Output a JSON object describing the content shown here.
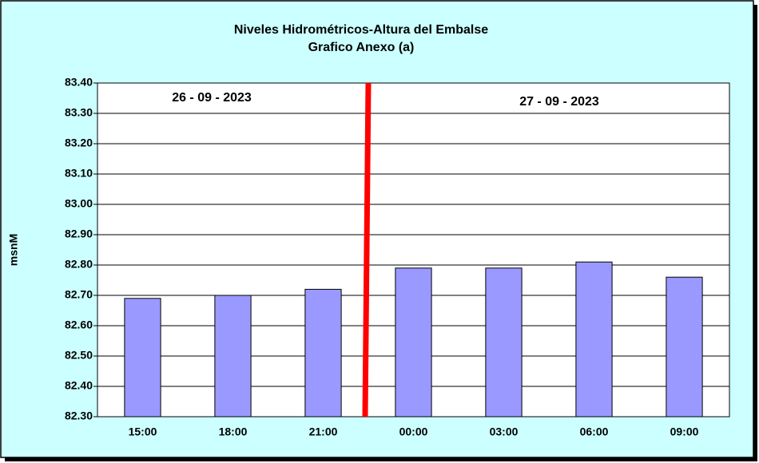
{
  "chart_data": {
    "type": "bar",
    "title": "Niveles Hidrométricos-Altura del Embalse",
    "subtitle": "Grafico Anexo (a)",
    "y_label": "msnM",
    "annotations": [
      "26 - 09 - 2023",
      "27 - 09 - 2023"
    ],
    "categories": [
      "15:00",
      "18:00",
      "21:00",
      "00:00",
      "03:00",
      "06:00",
      "09:00"
    ],
    "values": [
      82.69,
      82.7,
      82.72,
      82.79,
      82.79,
      82.81,
      82.76
    ],
    "color": "#9999ff",
    "ylim": [
      82.3,
      83.4
    ],
    "yticks": [
      {
        "value": 82.3,
        "label": "82.30"
      },
      {
        "value": 82.4,
        "label": "82.40"
      },
      {
        "value": 82.5,
        "label": "82.50"
      },
      {
        "value": 82.6,
        "label": "82.60"
      },
      {
        "value": 82.7,
        "label": "82.70"
      },
      {
        "value": 82.8,
        "label": "82.80"
      },
      {
        "value": 82.9,
        "label": "82.90"
      },
      {
        "value": 83.0,
        "label": "83.00"
      },
      {
        "value": 83.1,
        "label": "83.10"
      },
      {
        "value": 83.2,
        "label": "83.20"
      },
      {
        "value": 83.3,
        "label": "83.30"
      },
      {
        "value": 83.4,
        "label": "83.40"
      }
    ],
    "grid": true
  }
}
